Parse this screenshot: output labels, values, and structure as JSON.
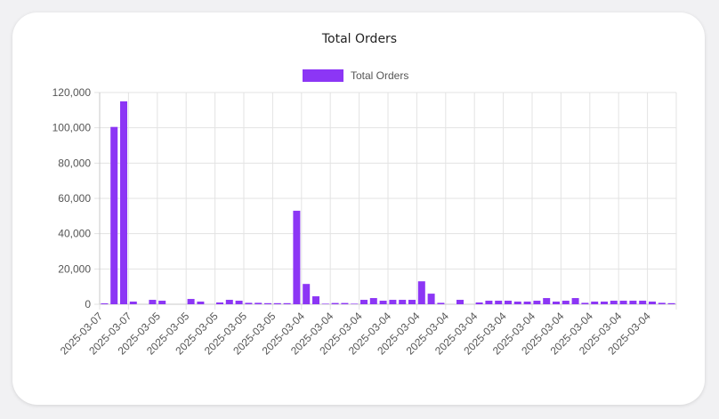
{
  "colors": {
    "bar": "#8c36f5",
    "grid": "#e3e3e3",
    "axis": "#c8c8c8"
  },
  "chart_data": {
    "type": "bar",
    "title": "Total Orders",
    "legend": {
      "position": "top",
      "labels": [
        "Total Orders"
      ]
    },
    "xlabel": "",
    "ylabel": "",
    "ylim": [
      0,
      120000
    ],
    "y_ticks": [
      0,
      20000,
      40000,
      60000,
      80000,
      100000,
      120000
    ],
    "y_tick_labels": [
      "0",
      "20,000",
      "40,000",
      "60,000",
      "80,000",
      "100,000",
      "120,000"
    ],
    "grid": true,
    "x_tick_labels": [
      "2025-03-07",
      "2025-03-07",
      "2025-03-05",
      "2025-03-05",
      "2025-03-05",
      "2025-03-05",
      "2025-03-05",
      "2025-03-04",
      "2025-03-04",
      "2025-03-04",
      "2025-03-04",
      "2025-03-04",
      "2025-03-04",
      "2025-03-04",
      "2025-03-04",
      "2025-03-04",
      "2025-03-04",
      "2025-03-04",
      "2025-03-04",
      "2025-03-04"
    ],
    "series": [
      {
        "name": "Total Orders",
        "values": [
          500,
          100500,
          115000,
          1500,
          0,
          2500,
          2000,
          0,
          0,
          3000,
          1500,
          0,
          1000,
          2500,
          2000,
          800,
          800,
          600,
          600,
          600,
          53000,
          11500,
          4500,
          300,
          700,
          700,
          300,
          2500,
          3500,
          2000,
          2500,
          2500,
          2500,
          13000,
          6000,
          800,
          0,
          2500,
          0,
          1000,
          2000,
          2000,
          2000,
          1500,
          1500,
          2000,
          3500,
          1500,
          2000,
          3500,
          800,
          1500,
          1500,
          2000,
          2000,
          2000,
          2000,
          1500,
          800,
          600
        ]
      }
    ]
  }
}
